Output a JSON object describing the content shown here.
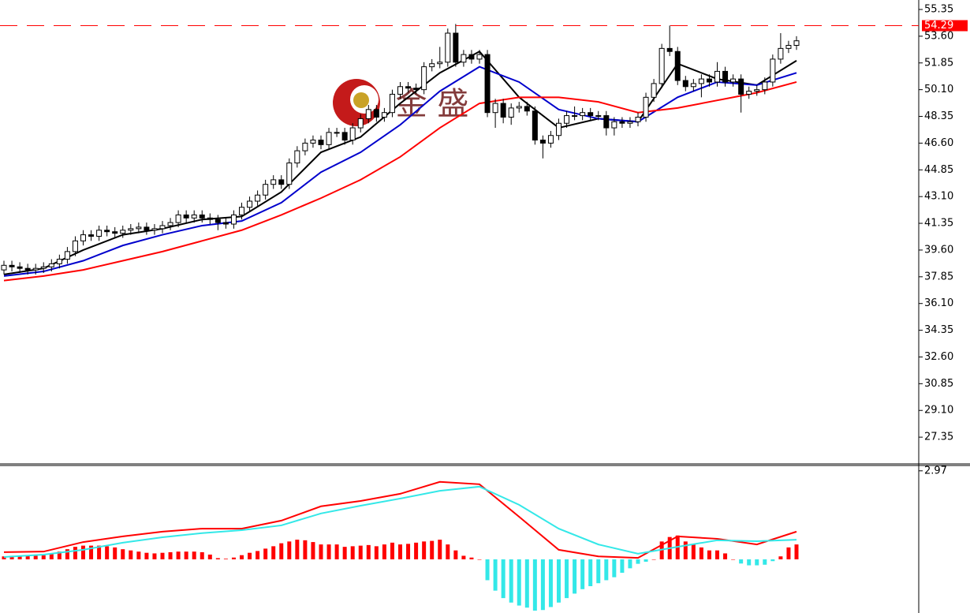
{
  "chart_data": [
    {
      "type": "candlestick",
      "open": [
        38.3,
        38.6,
        38.5,
        38.4,
        38.3,
        38.4,
        38.5,
        38.7,
        39.0,
        39.5,
        40.2,
        40.6,
        40.5,
        40.9,
        40.8,
        40.7,
        40.9,
        41.0,
        41.1,
        40.9,
        41.0,
        41.2,
        41.4,
        41.9,
        41.7,
        41.9,
        41.7,
        41.6,
        41.4,
        41.3,
        41.9,
        42.4,
        42.8,
        43.2,
        43.9,
        44.2,
        43.9,
        45.3,
        46.1,
        46.6,
        46.8,
        46.5,
        47.3,
        47.3,
        46.8,
        47.6,
        48.2,
        48.8,
        48.3,
        48.6,
        49.8,
        50.3,
        50.2,
        50.1,
        51.6,
        51.8,
        51.9,
        53.8,
        51.9,
        52.4,
        52.1,
        52.4,
        48.6,
        49.2,
        48.3,
        48.9,
        49.0,
        48.7,
        46.8,
        46.6,
        47.1,
        47.9,
        48.4,
        48.4,
        48.6,
        48.4,
        48.4,
        47.6,
        48.0,
        47.9,
        48.0,
        48.3,
        49.6,
        50.5,
        52.8,
        52.6,
        50.7,
        50.3,
        50.5,
        50.8,
        50.6,
        51.3,
        50.6,
        50.8,
        49.8,
        50.0,
        50.1,
        50.6,
        52.1,
        52.8,
        53.0
      ],
      "high": [
        38.9,
        38.9,
        38.8,
        38.7,
        38.7,
        38.8,
        39.0,
        39.3,
        39.8,
        40.5,
        40.9,
        40.9,
        41.2,
        41.2,
        41.1,
        41.2,
        41.3,
        41.4,
        41.4,
        41.3,
        41.5,
        41.7,
        42.2,
        42.2,
        42.2,
        42.2,
        42.0,
        41.9,
        41.7,
        42.2,
        42.7,
        43.1,
        43.5,
        44.2,
        44.5,
        44.5,
        45.6,
        46.4,
        46.9,
        47.1,
        47.1,
        47.6,
        47.6,
        47.6,
        47.9,
        48.5,
        49.1,
        49.1,
        48.9,
        50.1,
        50.6,
        50.6,
        50.5,
        51.9,
        52.1,
        52.9,
        54.1,
        54.4,
        52.7,
        52.7,
        52.7,
        52.7,
        49.5,
        49.5,
        49.2,
        49.3,
        49.3,
        49.0,
        47.1,
        47.4,
        48.2,
        48.7,
        49.0,
        48.9,
        48.9,
        48.7,
        48.7,
        48.3,
        48.3,
        48.3,
        48.6,
        49.9,
        50.8,
        53.1,
        54.3,
        52.9,
        51.0,
        50.8,
        51.1,
        51.1,
        51.9,
        51.6,
        51.1,
        51.1,
        50.3,
        50.4,
        50.9,
        52.4,
        53.8,
        53.3,
        53.6
      ],
      "low": [
        38.0,
        38.2,
        38.1,
        38.0,
        38.0,
        38.1,
        38.2,
        38.4,
        38.7,
        39.2,
        39.9,
        40.2,
        40.2,
        40.5,
        40.4,
        40.4,
        40.6,
        40.7,
        40.6,
        40.6,
        40.7,
        40.9,
        41.1,
        41.4,
        41.4,
        41.4,
        41.3,
        40.9,
        41.0,
        41.0,
        41.6,
        42.1,
        42.5,
        42.9,
        43.6,
        43.6,
        43.6,
        45.0,
        45.8,
        46.3,
        46.2,
        46.2,
        47.0,
        46.5,
        46.5,
        47.3,
        47.9,
        48.0,
        48.0,
        48.3,
        49.5,
        49.9,
        49.8,
        49.8,
        51.3,
        51.5,
        51.6,
        51.6,
        51.6,
        51.8,
        51.8,
        48.3,
        47.6,
        47.9,
        47.8,
        48.6,
        48.4,
        46.5,
        45.6,
        46.3,
        46.8,
        47.6,
        48.1,
        48.1,
        48.1,
        48.1,
        47.1,
        47.1,
        47.6,
        47.6,
        47.7,
        48.0,
        49.3,
        50.2,
        52.3,
        50.4,
        50.0,
        50.0,
        49.6,
        50.3,
        50.3,
        50.3,
        50.3,
        48.6,
        49.5,
        49.7,
        49.8,
        50.3,
        51.8,
        52.5,
        52.7
      ],
      "close": [
        38.6,
        38.5,
        38.4,
        38.3,
        38.4,
        38.5,
        38.7,
        39.0,
        39.5,
        40.2,
        40.6,
        40.5,
        40.9,
        40.8,
        40.7,
        40.9,
        41.0,
        41.1,
        40.9,
        41.0,
        41.2,
        41.4,
        41.9,
        41.7,
        41.9,
        41.7,
        41.6,
        41.4,
        41.3,
        41.9,
        42.4,
        42.8,
        43.2,
        43.9,
        44.2,
        43.9,
        45.3,
        46.1,
        46.6,
        46.8,
        46.5,
        47.3,
        47.3,
        46.8,
        47.6,
        48.2,
        48.8,
        48.3,
        48.6,
        49.8,
        50.3,
        50.2,
        50.1,
        51.6,
        51.8,
        51.9,
        53.8,
        51.9,
        52.4,
        52.1,
        52.4,
        48.6,
        49.2,
        48.3,
        48.9,
        49.0,
        48.7,
        46.8,
        46.6,
        47.1,
        47.9,
        48.4,
        48.4,
        48.6,
        48.4,
        48.4,
        47.6,
        48.0,
        47.9,
        48.0,
        48.3,
        49.6,
        50.5,
        52.8,
        52.6,
        50.7,
        50.3,
        50.5,
        50.8,
        50.6,
        51.3,
        50.6,
        50.8,
        49.8,
        50.0,
        50.1,
        50.6,
        52.1,
        52.8,
        53.0,
        53.3
      ],
      "up_color": "#ffffff",
      "down_color": "#000000",
      "outline": "#000000",
      "lines": [
        {
          "color": "#000000",
          "x": [
            0,
            5,
            10,
            15,
            20,
            25,
            30,
            35,
            40,
            45,
            50,
            55,
            60,
            65,
            70,
            75,
            80,
            85,
            90,
            95,
            100
          ],
          "values": [
            38.0,
            38.4,
            39.6,
            40.6,
            41.0,
            41.6,
            41.8,
            43.4,
            46.0,
            47.0,
            49.2,
            51.2,
            52.6,
            49.6,
            47.6,
            48.2,
            48.0,
            51.8,
            50.8,
            50.4,
            52.0
          ]
        },
        {
          "color": "#0000cc",
          "x": [
            0,
            5,
            10,
            15,
            20,
            25,
            30,
            35,
            40,
            45,
            50,
            55,
            60,
            65,
            70,
            75,
            80,
            85,
            90,
            95,
            100
          ],
          "values": [
            37.9,
            38.2,
            38.9,
            39.9,
            40.6,
            41.2,
            41.5,
            42.7,
            44.7,
            46.0,
            47.8,
            50.0,
            51.6,
            50.6,
            48.8,
            48.2,
            48.0,
            49.6,
            50.6,
            50.4,
            51.2
          ]
        },
        {
          "color": "#ff0000",
          "x": [
            0,
            5,
            10,
            15,
            20,
            25,
            30,
            35,
            40,
            45,
            50,
            55,
            60,
            65,
            70,
            75,
            80,
            85,
            90,
            95,
            100
          ],
          "values": [
            37.6,
            37.9,
            38.3,
            38.9,
            39.5,
            40.2,
            40.9,
            41.9,
            43.0,
            44.2,
            45.7,
            47.6,
            49.2,
            49.6,
            49.6,
            49.3,
            48.6,
            48.9,
            49.4,
            49.9,
            50.6
          ]
        }
      ],
      "ylim": [
        25.6,
        55.97
      ],
      "yticks": [
        55.35,
        {
          "value": 53.6,
          "label": "53.60"
        },
        51.85,
        {
          "value": 50.1,
          "label": "50.10"
        },
        48.35,
        {
          "value": 46.6,
          "label": "46.60"
        },
        44.85,
        {
          "value": 43.1,
          "label": "43.10"
        },
        41.35,
        {
          "value": 39.6,
          "label": "39.60"
        },
        37.85,
        {
          "value": 36.1,
          "label": "36.10"
        },
        34.35,
        {
          "value": 32.6,
          "label": "32.60"
        },
        30.85,
        {
          "value": 29.1,
          "label": "29.10"
        },
        27.35
      ],
      "price_line": {
        "value": 54.29,
        "color": "#ff0000"
      },
      "watermark": "金 盛"
    },
    {
      "type": "macd",
      "histogram": [
        0.1,
        0.12,
        0.12,
        0.12,
        0.12,
        0.14,
        0.2,
        0.26,
        0.34,
        0.42,
        0.46,
        0.46,
        0.46,
        0.44,
        0.4,
        0.34,
        0.3,
        0.26,
        0.22,
        0.2,
        0.22,
        0.24,
        0.26,
        0.26,
        0.26,
        0.24,
        0.16,
        0.04,
        0.02,
        0.06,
        0.14,
        0.22,
        0.28,
        0.36,
        0.44,
        0.54,
        0.6,
        0.66,
        0.64,
        0.58,
        0.5,
        0.5,
        0.5,
        0.42,
        0.44,
        0.46,
        0.48,
        0.44,
        0.5,
        0.56,
        0.5,
        0.52,
        0.56,
        0.6,
        0.62,
        0.66,
        0.5,
        0.3,
        0.12,
        0.06,
        0,
        -0.7,
        -1.05,
        -1.3,
        -1.45,
        -1.55,
        -1.62,
        -1.72,
        -1.7,
        -1.6,
        -1.45,
        -1.3,
        -1.15,
        -1.0,
        -0.9,
        -0.8,
        -0.7,
        -0.6,
        -0.45,
        -0.3,
        -0.15,
        -0.08,
        0,
        0.6,
        0.75,
        0.8,
        0.6,
        0.5,
        0.4,
        0.3,
        0.3,
        0.2,
        0,
        -0.14,
        -0.2,
        -0.2,
        -0.18,
        -0.06,
        0.1,
        0.4,
        0.5
      ],
      "positive_color": "#ff0000",
      "negative_color": "#33e8e8",
      "lines": [
        {
          "color": "#ff0000",
          "x": [
            0,
            5,
            10,
            15,
            20,
            25,
            30,
            35,
            40,
            45,
            50,
            55,
            60,
            65,
            70,
            75,
            80,
            85,
            90,
            95,
            100
          ],
          "values": [
            0.24,
            0.26,
            0.58,
            0.77,
            0.93,
            1.03,
            1.03,
            1.3,
            1.78,
            1.96,
            2.2,
            2.6,
            2.52,
            1.43,
            0.32,
            0.1,
            0.05,
            0.77,
            0.69,
            0.5,
            0.93
          ]
        },
        {
          "color": "#33e8e8",
          "x": [
            0,
            5,
            10,
            15,
            20,
            25,
            30,
            35,
            40,
            45,
            50,
            55,
            60,
            65,
            70,
            75,
            80,
            85,
            90,
            95,
            100
          ],
          "values": [
            0.08,
            0.16,
            0.32,
            0.56,
            0.74,
            0.88,
            0.98,
            1.14,
            1.54,
            1.8,
            2.04,
            2.3,
            2.44,
            1.83,
            1.03,
            0.5,
            0.19,
            0.42,
            0.64,
            0.61,
            0.66
          ]
        }
      ],
      "ylim": [
        -1.8,
        3.15
      ],
      "yticks": [
        2.97
      ]
    }
  ]
}
